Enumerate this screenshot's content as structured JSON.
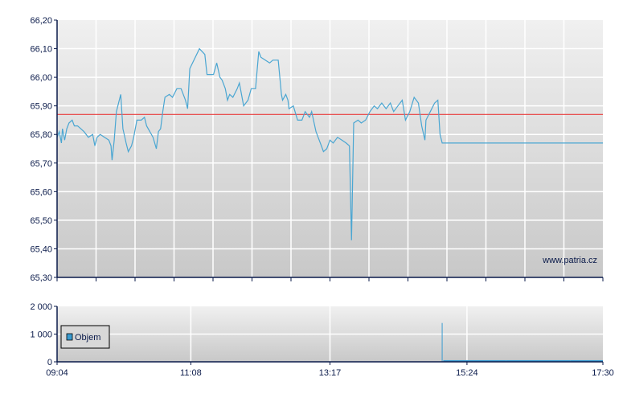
{
  "watermark": "www.patria.cz",
  "colors": {
    "price_line": "#4aa6d2",
    "reference_line": "#e84040",
    "axis": "#0a1a4a",
    "volume": "#3a9bd0",
    "grid": "#ffffff",
    "bg_top": "#f0f0f0",
    "bg_bottom": "#c8c8c8"
  },
  "chart_data": [
    {
      "type": "line",
      "xlim": [
        "09:04",
        "17:30"
      ],
      "ylim": [
        65.3,
        66.2
      ],
      "grid": true,
      "yticks": [
        66.2,
        66.1,
        66.0,
        65.9,
        65.8,
        65.7,
        65.6,
        65.5,
        65.4,
        65.3
      ],
      "ytick_labels": [
        "66,20",
        "66,10",
        "66,00",
        "65,90",
        "65,80",
        "65,70",
        "65,60",
        "65,50",
        "65,40",
        "65,30"
      ],
      "reference_line": 65.87,
      "series": [
        {
          "points": [
            [
              "09:04",
              65.79
            ],
            [
              "09:06",
              65.81
            ],
            [
              "09:08",
              65.77
            ],
            [
              "09:09",
              65.82
            ],
            [
              "09:11",
              65.78
            ],
            [
              "09:13",
              65.82
            ],
            [
              "09:15",
              65.84
            ],
            [
              "09:18",
              65.85
            ],
            [
              "09:20",
              65.83
            ],
            [
              "09:23",
              65.83
            ],
            [
              "09:26",
              65.82
            ],
            [
              "09:29",
              65.81
            ],
            [
              "09:33",
              65.79
            ],
            [
              "09:37",
              65.8
            ],
            [
              "09:39",
              65.76
            ],
            [
              "09:41",
              65.79
            ],
            [
              "09:44",
              65.8
            ],
            [
              "09:48",
              65.79
            ],
            [
              "09:52",
              65.78
            ],
            [
              "09:54",
              65.76
            ],
            [
              "09:55",
              65.71
            ],
            [
              "09:57",
              65.78
            ],
            [
              "09:59",
              65.88
            ],
            [
              "10:03",
              65.94
            ],
            [
              "10:05",
              65.82
            ],
            [
              "10:08",
              65.77
            ],
            [
              "10:10",
              65.74
            ],
            [
              "10:13",
              65.76
            ],
            [
              "10:15",
              65.79
            ],
            [
              "10:18",
              65.85
            ],
            [
              "10:22",
              65.85
            ],
            [
              "10:25",
              65.86
            ],
            [
              "10:27",
              65.83
            ],
            [
              "10:30",
              65.81
            ],
            [
              "10:33",
              65.79
            ],
            [
              "10:36",
              65.75
            ],
            [
              "10:38",
              65.81
            ],
            [
              "10:40",
              65.82
            ],
            [
              "10:42",
              65.88
            ],
            [
              "10:44",
              65.93
            ],
            [
              "10:48",
              65.94
            ],
            [
              "10:51",
              65.93
            ],
            [
              "10:55",
              65.96
            ],
            [
              "10:59",
              65.96
            ],
            [
              "11:03",
              65.92
            ],
            [
              "11:05",
              65.89
            ],
            [
              "11:07",
              66.03
            ],
            [
              "11:16",
              66.1
            ],
            [
              "11:21",
              66.08
            ],
            [
              "11:23",
              66.01
            ],
            [
              "11:29",
              66.01
            ],
            [
              "11:32",
              66.05
            ],
            [
              "11:35",
              66.0
            ],
            [
              "11:37",
              65.99
            ],
            [
              "11:40",
              65.96
            ],
            [
              "11:42",
              65.92
            ],
            [
              "11:44",
              65.94
            ],
            [
              "11:47",
              65.93
            ],
            [
              "11:51",
              65.96
            ],
            [
              "11:53",
              65.98
            ],
            [
              "11:57",
              65.9
            ],
            [
              "12:01",
              65.92
            ],
            [
              "12:04",
              65.96
            ],
            [
              "12:08",
              65.96
            ],
            [
              "12:11",
              66.09
            ],
            [
              "12:13",
              66.07
            ],
            [
              "12:17",
              66.06
            ],
            [
              "12:21",
              66.05
            ],
            [
              "12:24",
              66.06
            ],
            [
              "12:29",
              66.06
            ],
            [
              "12:32",
              65.94
            ],
            [
              "12:33",
              65.92
            ],
            [
              "12:36",
              65.94
            ],
            [
              "12:38",
              65.92
            ],
            [
              "12:39",
              65.89
            ],
            [
              "12:43",
              65.9
            ],
            [
              "12:47",
              65.85
            ],
            [
              "12:51",
              65.85
            ],
            [
              "12:54",
              65.88
            ],
            [
              "12:58",
              65.86
            ],
            [
              "13:00",
              65.88
            ],
            [
              "13:04",
              65.81
            ],
            [
              "13:07",
              65.78
            ],
            [
              "13:09",
              65.76
            ],
            [
              "13:11",
              65.74
            ],
            [
              "13:14",
              65.75
            ],
            [
              "13:17",
              65.78
            ],
            [
              "13:20",
              65.77
            ],
            [
              "13:24",
              65.79
            ],
            [
              "13:28",
              65.78
            ],
            [
              "13:32",
              65.77
            ],
            [
              "13:35",
              65.76
            ],
            [
              "13:37",
              65.43
            ],
            [
              "13:39",
              65.84
            ],
            [
              "13:43",
              65.85
            ],
            [
              "13:46",
              65.84
            ],
            [
              "13:50",
              65.85
            ],
            [
              "13:54",
              65.88
            ],
            [
              "13:58",
              65.9
            ],
            [
              "14:01",
              65.89
            ],
            [
              "14:05",
              65.91
            ],
            [
              "14:09",
              65.89
            ],
            [
              "14:13",
              65.91
            ],
            [
              "14:16",
              65.88
            ],
            [
              "14:20",
              65.9
            ],
            [
              "14:24",
              65.92
            ],
            [
              "14:27",
              65.85
            ],
            [
              "14:31",
              65.88
            ],
            [
              "14:35",
              65.93
            ],
            [
              "14:39",
              65.91
            ],
            [
              "14:42",
              65.83
            ],
            [
              "14:45",
              65.78
            ],
            [
              "14:46",
              65.85
            ],
            [
              "14:50",
              65.88
            ],
            [
              "14:54",
              65.91
            ],
            [
              "14:57",
              65.92
            ],
            [
              "14:59",
              65.8
            ],
            [
              "15:01",
              65.77
            ],
            [
              "17:30",
              65.77
            ]
          ]
        }
      ]
    },
    {
      "type": "bar",
      "xlim": [
        "09:04",
        "17:30"
      ],
      "ylim": [
        0,
        2000
      ],
      "grid": true,
      "yticks": [
        0,
        1000,
        2000
      ],
      "ytick_labels": [
        "0",
        "1 000",
        "2 000"
      ],
      "xtick_labels": [
        "09:04",
        "11:08",
        "13:17",
        "15:24",
        "17:30"
      ],
      "legend": {
        "label": "Objem",
        "placement": "left"
      },
      "series": [
        {
          "name": "Objem",
          "points": [
            [
              "15:01",
              1400
            ],
            [
              "15:02",
              60
            ],
            [
              "15:30",
              60
            ],
            [
              "16:00",
              60
            ],
            [
              "16:30",
              60
            ],
            [
              "17:00",
              60
            ],
            [
              "17:30",
              60
            ]
          ]
        }
      ]
    }
  ]
}
